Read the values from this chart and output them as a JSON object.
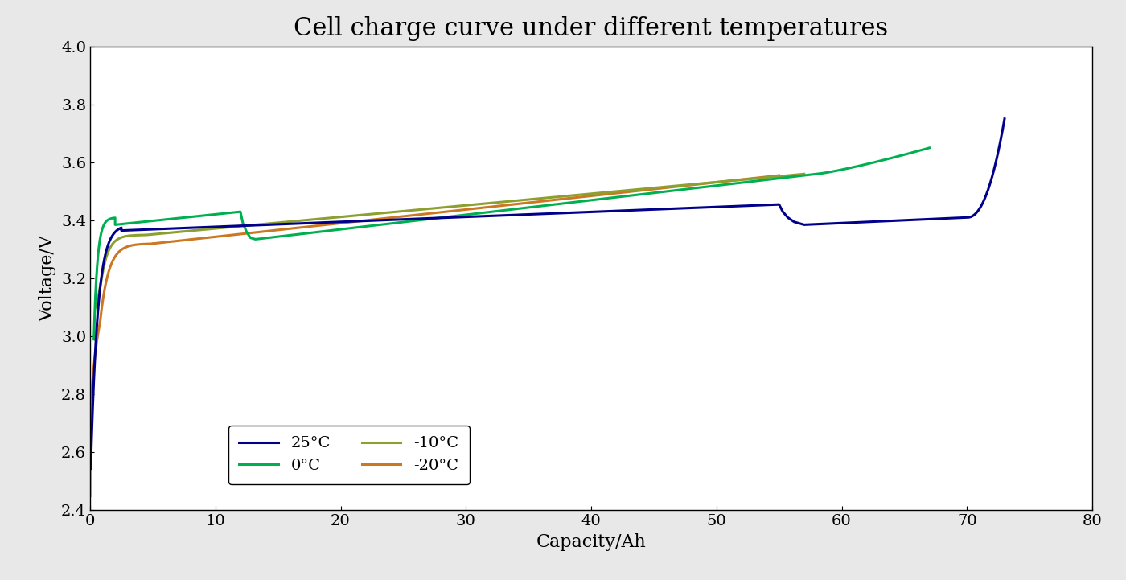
{
  "title": "Cell charge curve under different temperatures",
  "xlabel": "Capacity/Ah",
  "ylabel": "Voltage/V",
  "xlim": [
    0,
    80
  ],
  "ylim": [
    2.4,
    4.0
  ],
  "xticks": [
    0,
    10,
    20,
    30,
    40,
    50,
    60,
    70,
    80
  ],
  "yticks": [
    2.4,
    2.6,
    2.8,
    3.0,
    3.2,
    3.4,
    3.6,
    3.8,
    4.0
  ],
  "background_color": "#e8e8e8",
  "plot_bg_color": "#ffffff",
  "colors": {
    "25C": "#00008B",
    "0C": "#00b050",
    "-10C": "#8ca030",
    "-20C": "#cc7722"
  },
  "legend_labels": [
    "25°C",
    "0°C",
    "-10°C",
    "-20°C"
  ],
  "title_fontsize": 22,
  "label_fontsize": 16,
  "tick_fontsize": 14,
  "legend_fontsize": 14,
  "linewidth": 2.2
}
